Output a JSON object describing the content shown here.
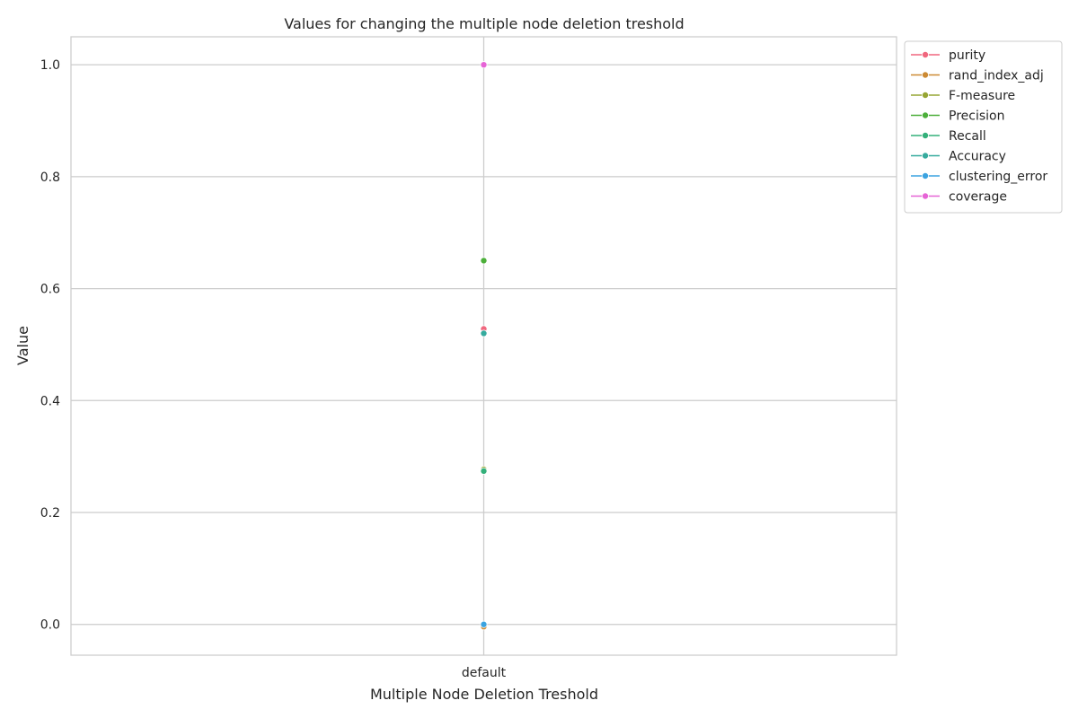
{
  "chart_data": {
    "type": "line",
    "title": "Values for changing the multiple node deletion treshold",
    "xlabel": "Multiple Node Deletion Treshold",
    "ylabel": "Value",
    "categories": [
      "default"
    ],
    "ylim": [
      -0.055,
      1.05
    ],
    "yticks": [
      0.0,
      0.2,
      0.4,
      0.6,
      0.8,
      1.0
    ],
    "ytick_labels": [
      "0.0",
      "0.2",
      "0.4",
      "0.6",
      "0.8",
      "1.0"
    ],
    "grid": true,
    "legend_position": "outside-top-right",
    "series": [
      {
        "name": "purity",
        "values": [
          0.528
        ],
        "color": "#f0677e"
      },
      {
        "name": "rand_index_adj",
        "values": [
          -0.004
        ],
        "color": "#cc8a33"
      },
      {
        "name": "F-measure",
        "values": [
          0.277
        ],
        "color": "#96a533"
      },
      {
        "name": "Precision",
        "values": [
          0.65
        ],
        "color": "#4caf3a"
      },
      {
        "name": "Recall",
        "values": [
          0.274
        ],
        "color": "#33b07a"
      },
      {
        "name": "Accuracy",
        "values": [
          0.52
        ],
        "color": "#36ab9e"
      },
      {
        "name": "clustering_error",
        "values": [
          0.0
        ],
        "color": "#3ba3e0"
      },
      {
        "name": "coverage",
        "values": [
          1.0
        ],
        "color": "#e664d6"
      }
    ]
  }
}
